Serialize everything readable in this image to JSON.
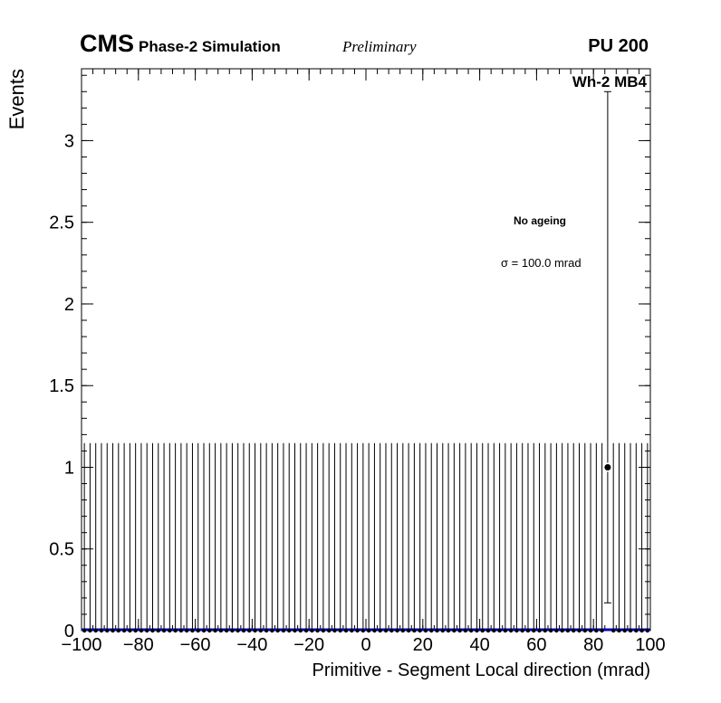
{
  "header": {
    "cms": "CMS",
    "subtitle": "Phase-2 Simulation",
    "preliminary": "Preliminary",
    "pu": "PU 200"
  },
  "plot_labels": {
    "series_title": "Wh-2 MB4",
    "legend_line1": "No ageing",
    "legend_line2": "σ = 100.0 mrad"
  },
  "chart_data": {
    "type": "scatter",
    "title": "",
    "xlabel": "Primitive - Segment Local direction (mrad)",
    "ylabel": "Events",
    "xlim": [
      -100,
      100
    ],
    "ylim": [
      0,
      3.44
    ],
    "grid": false,
    "x_tick_values": [
      -100,
      -80,
      -60,
      -40,
      -20,
      0,
      20,
      40,
      60,
      80,
      100
    ],
    "x_tick_labels": [
      "−100",
      "−80",
      "−60",
      "−40",
      "−20",
      "0",
      "20",
      "40",
      "60",
      "80",
      "100"
    ],
    "x_minor_step": 4,
    "y_tick_values": [
      0,
      0.5,
      1,
      1.5,
      2,
      2.5,
      3
    ],
    "y_tick_labels": [
      "0",
      "0.5",
      "1",
      "1.5",
      "2",
      "2.5",
      "3"
    ],
    "y_minor_step": 0.1,
    "bins": {
      "start": -100,
      "end": 100,
      "width": 2,
      "default_value": 0,
      "zero_bin_upper_error": 1.148,
      "exceptions": [
        {
          "x": 85,
          "y": 1,
          "err_low": 0.83,
          "err_up": 2.3
        }
      ]
    },
    "overlay_line": {
      "color": "#0000bb",
      "y": 0
    },
    "marker_color": "#000000"
  }
}
